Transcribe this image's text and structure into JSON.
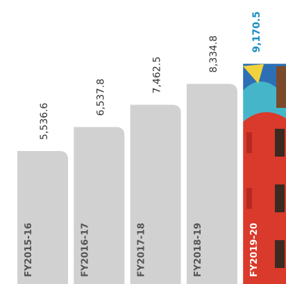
{
  "chart_data": {
    "type": "bar",
    "categories": [
      "FY2015-16",
      "FY2016-17",
      "FY2017-18",
      "FY2018-19",
      "FY2019-20"
    ],
    "values": [
      5536.6,
      6537.8,
      7462.5,
      8334.8,
      9170.5
    ],
    "value_labels": [
      "5,536.6",
      "6,537.8",
      "7,462.5",
      "8,334.8",
      "9,170.5"
    ],
    "color": "#d1d1d1",
    "highlight_color": "#1b8ec2"
  }
}
